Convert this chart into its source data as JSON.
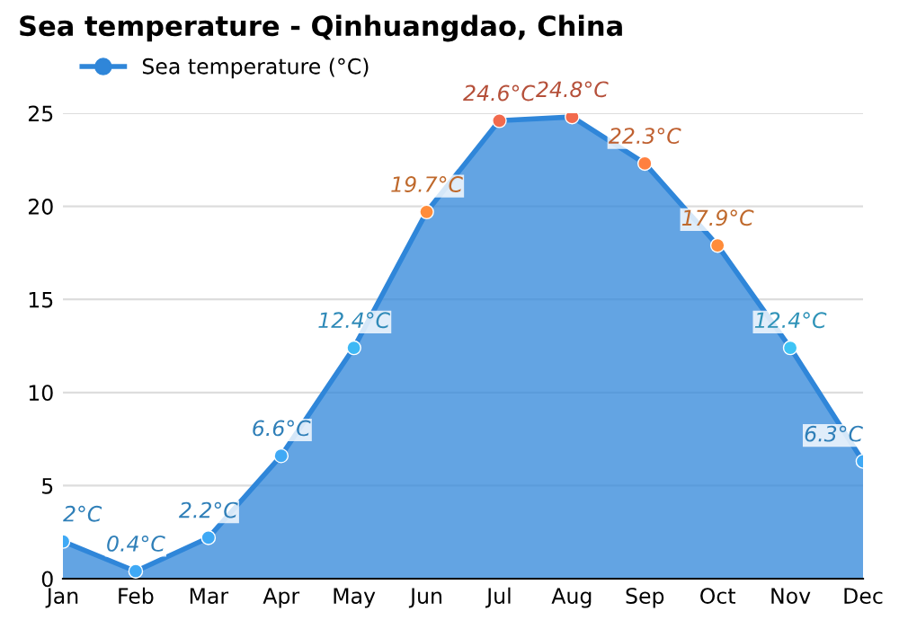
{
  "chart_data": {
    "type": "area",
    "title": "Sea temperature - Qinhuangdao, China",
    "categories": [
      "Jan",
      "Feb",
      "Mar",
      "Apr",
      "May",
      "Jun",
      "Jul",
      "Aug",
      "Sep",
      "Oct",
      "Nov",
      "Dec"
    ],
    "series": [
      {
        "name": "Sea temperature (°C)",
        "color": "#2f86d9",
        "values": [
          2,
          0.4,
          2.2,
          6.6,
          12.4,
          19.7,
          24.6,
          24.8,
          22.3,
          17.9,
          12.4,
          6.3
        ],
        "colors": [
          "#3fa9f5",
          "#3fa9f5",
          "#3fa9f5",
          "#3fa9f5",
          "#3fb8f5",
          "#ff8c3a",
          "#f26a4d",
          "#f26a4d",
          "#ff8040",
          "#ff8c3a",
          "#3fc4f5",
          "#3fa9f5"
        ],
        "value_labels": [
          "2°C",
          "0.4°C",
          "2.2°C",
          "6.6°C",
          "12.4°C",
          "19.7°C",
          "24.6°C",
          "24.8°C",
          "22.3°C",
          "17.9°C",
          "12.4°C",
          "6.3°C"
        ]
      }
    ],
    "ylim": [
      0,
      25
    ],
    "yticks": [
      0,
      5,
      10,
      15,
      20,
      25
    ],
    "grid": "y",
    "legend": "top left",
    "marker": "circle"
  }
}
